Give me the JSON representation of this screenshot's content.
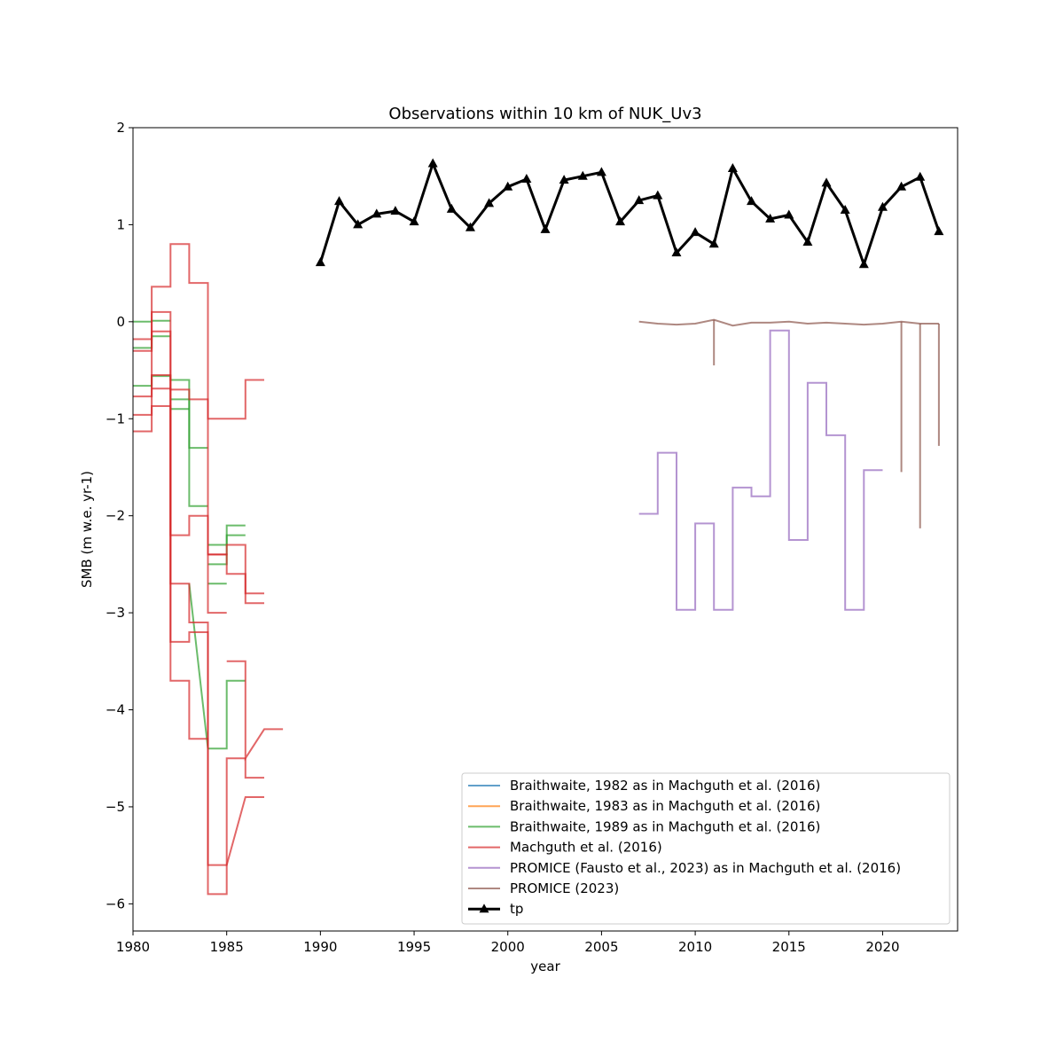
{
  "chart_data": {
    "type": "line",
    "title": "Observations within 10 km of NUK_Uv3",
    "xlabel": "year",
    "ylabel": "SMB (m w.e. yr-1)",
    "xlim": [
      1980,
      2024
    ],
    "ylim": [
      -6.28,
      2.0
    ],
    "x_ticks": [
      1980,
      1985,
      1990,
      1995,
      2000,
      2005,
      2010,
      2015,
      2020
    ],
    "y_ticks": [
      2,
      1,
      0,
      -1,
      -2,
      -3,
      -4,
      -5,
      -6
    ],
    "y_tick_labels": [
      "2",
      "1",
      "0",
      "−1",
      "−2",
      "−3",
      "−4",
      "−5",
      "−6"
    ],
    "legend_position": "lower-right",
    "series": [
      {
        "name": "Braithwaite,  1982 as in Machguth et al. (2016)",
        "color": "#1f77b4",
        "style": "step",
        "segments": []
      },
      {
        "name": "Braithwaite,  1983 as in Machguth et al. (2016)",
        "color": "#ff7f0e",
        "style": "step",
        "segments": []
      },
      {
        "name": "Braithwaite,  1989 as in Machguth et al. (2016)",
        "color": "#2ca02c",
        "style": "step",
        "segments": [
          [
            [
              1980,
              -0.0
            ],
            [
              1981,
              -0.0
            ],
            [
              1981,
              0.01
            ],
            [
              1982,
              0.01
            ]
          ],
          [
            [
              1980,
              -0.27
            ],
            [
              1981,
              -0.27
            ],
            [
              1981,
              -0.15
            ],
            [
              1982,
              -0.15
            ]
          ],
          [
            [
              1980,
              -0.66
            ],
            [
              1981,
              -0.66
            ],
            [
              1981,
              -0.56
            ],
            [
              1982,
              -0.56
            ],
            [
              1982,
              -0.6
            ],
            [
              1983,
              -0.6
            ],
            [
              1983,
              -1.9
            ],
            [
              1984,
              -1.9
            ]
          ],
          [
            [
              1982,
              -0.8
            ],
            [
              1983,
              -0.8
            ],
            [
              1983,
              -1.3
            ],
            [
              1984,
              -1.3
            ]
          ],
          [
            [
              1982,
              -0.9
            ],
            [
              1983,
              -0.9
            ]
          ],
          [
            [
              1983,
              -2.7
            ],
            [
              1984,
              -4.4
            ],
            [
              1985,
              -4.4
            ],
            [
              1985,
              -3.7
            ],
            [
              1986,
              -3.7
            ]
          ],
          [
            [
              1984,
              -2.3
            ],
            [
              1985,
              -2.3
            ],
            [
              1985,
              -2.1
            ],
            [
              1986,
              -2.1
            ]
          ],
          [
            [
              1984,
              -2.5
            ],
            [
              1985,
              -2.5
            ],
            [
              1985,
              -2.2
            ],
            [
              1986,
              -2.2
            ]
          ],
          [
            [
              1984,
              -2.7
            ],
            [
              1985,
              -2.7
            ]
          ]
        ]
      },
      {
        "name": "Machguth et al. (2016)",
        "color": "#d62728",
        "style": "step",
        "segments": [
          [
            [
              1980,
              -0.18
            ],
            [
              1981,
              -0.18
            ],
            [
              1981,
              0.36
            ],
            [
              1982,
              0.36
            ],
            [
              1982,
              0.8
            ],
            [
              1983,
              0.8
            ],
            [
              1983,
              0.4
            ],
            [
              1984,
              0.4
            ],
            [
              1984,
              -1.0
            ],
            [
              1985,
              -1.0
            ],
            [
              1986,
              -1.0
            ],
            [
              1986,
              -0.6
            ],
            [
              1987,
              -0.6
            ]
          ],
          [
            [
              1980,
              -0.3
            ],
            [
              1981,
              -0.3
            ],
            [
              1981,
              0.1
            ],
            [
              1982,
              0.1
            ],
            [
              1982,
              -2.2
            ],
            [
              1983,
              -2.2
            ],
            [
              1983,
              -2.0
            ],
            [
              1984,
              -2.0
            ],
            [
              1984,
              -3.0
            ],
            [
              1985,
              -3.0
            ]
          ],
          [
            [
              1980,
              -0.77
            ],
            [
              1981,
              -0.77
            ],
            [
              1981,
              -0.1
            ],
            [
              1982,
              -0.1
            ],
            [
              1982,
              -2.7
            ],
            [
              1983,
              -2.7
            ],
            [
              1983,
              -3.1
            ],
            [
              1984,
              -3.1
            ],
            [
              1984,
              -5.9
            ],
            [
              1985,
              -5.9
            ],
            [
              1985,
              -4.5
            ],
            [
              1986,
              -4.5
            ],
            [
              1986,
              -4.7
            ],
            [
              1987,
              -4.7
            ]
          ],
          [
            [
              1980,
              -0.96
            ],
            [
              1981,
              -0.96
            ],
            [
              1981,
              -0.55
            ],
            [
              1982,
              -0.55
            ],
            [
              1982,
              -3.3
            ],
            [
              1983,
              -3.3
            ],
            [
              1983,
              -3.2
            ],
            [
              1984,
              -3.2
            ],
            [
              1984,
              -5.6
            ],
            [
              1985,
              -5.6
            ],
            [
              1986,
              -4.9
            ],
            [
              1987,
              -4.9
            ]
          ],
          [
            [
              1980,
              -1.13
            ],
            [
              1981,
              -1.13
            ],
            [
              1981,
              -0.87
            ],
            [
              1982,
              -0.87
            ],
            [
              1982,
              -3.7
            ],
            [
              1983,
              -3.7
            ],
            [
              1983,
              -4.3
            ],
            [
              1984,
              -4.3
            ],
            [
              1984,
              -4.4
            ]
          ],
          [
            [
              1981,
              -0.69
            ],
            [
              1982,
              -0.69
            ],
            [
              1982,
              -0.7
            ],
            [
              1983,
              -0.7
            ],
            [
              1983,
              -0.8
            ],
            [
              1984,
              -0.8
            ],
            [
              1984,
              -2.4
            ],
            [
              1985,
              -2.4
            ],
            [
              1985,
              -2.6
            ],
            [
              1986,
              -2.6
            ],
            [
              1986,
              -2.9
            ],
            [
              1987,
              -2.9
            ]
          ],
          [
            [
              1984,
              -2.4
            ],
            [
              1985,
              -2.4
            ],
            [
              1985,
              -2.3
            ],
            [
              1986,
              -2.3
            ],
            [
              1986,
              -2.8
            ],
            [
              1987,
              -2.8
            ]
          ],
          [
            [
              1985,
              -3.5
            ],
            [
              1986,
              -3.5
            ],
            [
              1986,
              -4.5
            ],
            [
              1987,
              -4.2
            ],
            [
              1988,
              -4.2
            ]
          ]
        ]
      },
      {
        "name": "PROMICE (Fausto et al., 2023) as in Machguth et al. (2016)",
        "color": "#9467bd",
        "style": "step",
        "segments": [
          [
            [
              2007,
              -1.98
            ],
            [
              2008,
              -1.98
            ],
            [
              2008,
              -1.35
            ],
            [
              2009,
              -1.35
            ],
            [
              2009,
              -2.97
            ],
            [
              2010,
              -2.97
            ],
            [
              2010,
              -2.08
            ],
            [
              2011,
              -2.08
            ],
            [
              2011,
              -2.97
            ],
            [
              2012,
              -2.97
            ],
            [
              2012,
              -1.71
            ],
            [
              2013,
              -1.71
            ],
            [
              2013,
              -1.8
            ],
            [
              2014,
              -1.8
            ],
            [
              2014,
              -0.09
            ],
            [
              2015,
              -0.09
            ],
            [
              2015,
              -2.25
            ],
            [
              2016,
              -2.25
            ],
            [
              2016,
              -0.63
            ],
            [
              2017,
              -0.63
            ],
            [
              2017,
              -1.17
            ],
            [
              2018,
              -1.17
            ],
            [
              2018,
              -2.97
            ],
            [
              2019,
              -2.97
            ],
            [
              2019,
              -1.53
            ],
            [
              2020,
              -1.53
            ]
          ]
        ]
      },
      {
        "name": "PROMICE (2023)",
        "color": "#8c564b",
        "style": "line",
        "segments": [
          [
            [
              2007,
              0.0
            ],
            [
              2008,
              -0.02
            ],
            [
              2009,
              -0.03
            ],
            [
              2010,
              -0.02
            ],
            [
              2011,
              0.02
            ],
            [
              2012,
              -0.04
            ],
            [
              2013,
              -0.01
            ],
            [
              2014,
              -0.01
            ],
            [
              2015,
              0.0
            ],
            [
              2016,
              -0.02
            ],
            [
              2017,
              -0.01
            ],
            [
              2018,
              -0.02
            ],
            [
              2019,
              -0.03
            ],
            [
              2020,
              -0.02
            ],
            [
              2021,
              0.0
            ],
            [
              2022,
              -0.02
            ],
            [
              2023,
              -0.02
            ]
          ],
          [
            [
              2011,
              0.02
            ],
            [
              2011,
              -0.45
            ]
          ],
          [
            [
              2021,
              0.0
            ],
            [
              2021,
              -1.55
            ]
          ],
          [
            [
              2022,
              -0.02
            ],
            [
              2022,
              -2.13
            ]
          ],
          [
            [
              2023,
              -0.02
            ],
            [
              2023,
              -1.28
            ]
          ]
        ]
      },
      {
        "name": "tp",
        "color": "#000000",
        "style": "markers",
        "x": [
          1990,
          1991,
          1992,
          1993,
          1994,
          1995,
          1996,
          1997,
          1998,
          1999,
          2000,
          2001,
          2002,
          2003,
          2004,
          2005,
          2006,
          2007,
          2008,
          2009,
          2010,
          2011,
          2012,
          2013,
          2014,
          2015,
          2016,
          2017,
          2018,
          2019,
          2020,
          2021,
          2022,
          2023
        ],
        "y": [
          0.61,
          1.24,
          1.0,
          1.11,
          1.14,
          1.03,
          1.63,
          1.16,
          0.97,
          1.22,
          1.39,
          1.47,
          0.95,
          1.46,
          1.5,
          1.54,
          1.03,
          1.25,
          1.3,
          0.71,
          0.92,
          0.8,
          1.58,
          1.24,
          1.06,
          1.1,
          0.82,
          1.43,
          1.15,
          0.59,
          1.18,
          1.39,
          1.49,
          0.93
        ]
      }
    ]
  }
}
